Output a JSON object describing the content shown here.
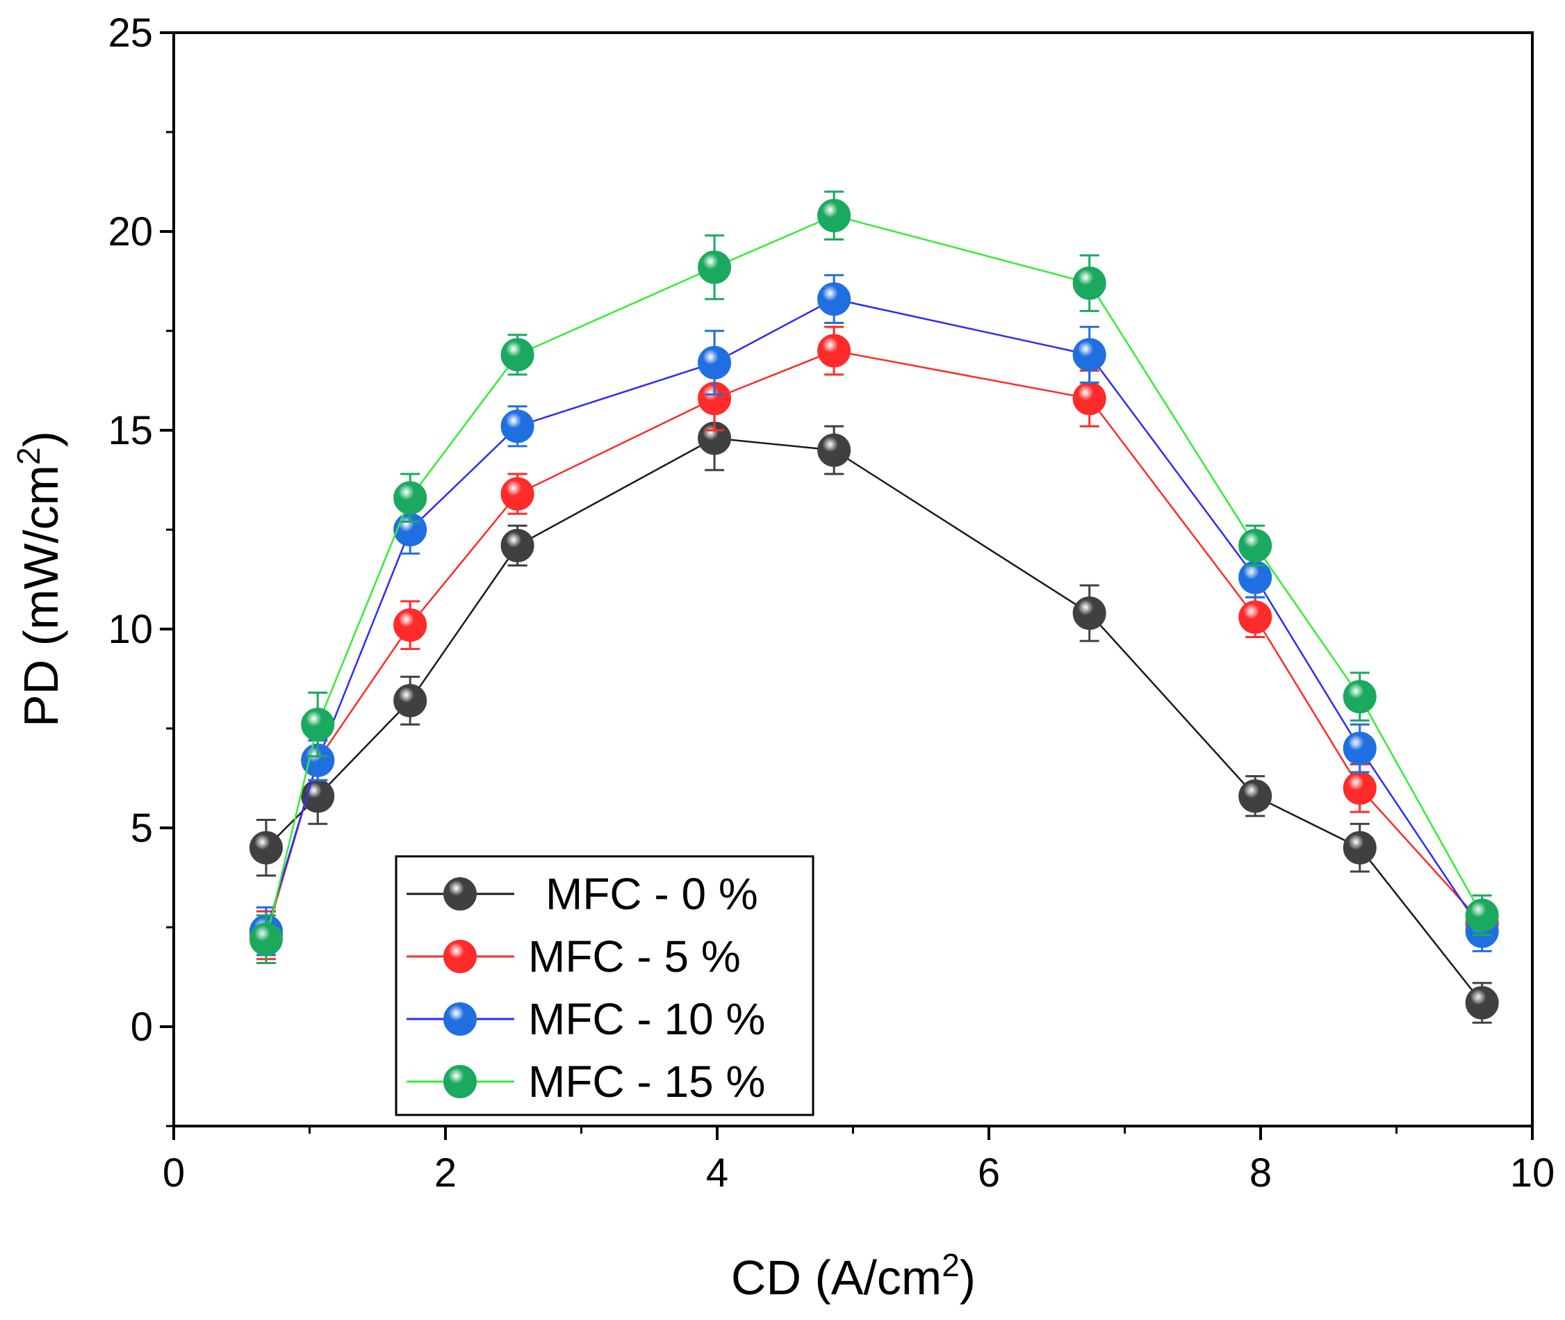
{
  "chart_data": {
    "type": "line",
    "title": "",
    "xlabel": {
      "text": "CD (A/cm",
      "sup": "2",
      "close": ")"
    },
    "ylabel": {
      "text": "PD (mW/cm",
      "sup": "2",
      "close": ")"
    },
    "xlim": [
      0,
      10
    ],
    "ylim": [
      -2.5,
      25
    ],
    "xticks": [
      0,
      2,
      4,
      6,
      8,
      10
    ],
    "yticks": [
      0,
      5,
      10,
      15,
      20,
      25
    ],
    "x_tick_labels": [
      "0",
      "2",
      "4",
      "6",
      "8",
      "10"
    ],
    "y_tick_labels": [
      "0",
      "5",
      "10",
      "15",
      "20",
      "25"
    ],
    "grid": false,
    "legend_position": "bottom-left",
    "x": [
      0.68,
      1.06,
      1.74,
      2.53,
      3.98,
      4.86,
      6.74,
      7.96,
      8.73,
      9.63
    ],
    "series": [
      {
        "name": "MFC - 0 %",
        "color": "#404040",
        "line_color": "#1a1a1a",
        "values": [
          4.5,
          5.8,
          8.2,
          12.1,
          14.8,
          14.5,
          10.4,
          5.8,
          4.5,
          0.6
        ],
        "errors": [
          0.7,
          0.7,
          0.6,
          0.5,
          0.8,
          0.6,
          0.7,
          0.5,
          0.6,
          0.5
        ]
      },
      {
        "name": "MFC - 5 %",
        "color": "#ff2a2a",
        "line_color": "#ff2a2a",
        "values": [
          2.3,
          6.7,
          10.1,
          13.4,
          15.8,
          17.0,
          15.8,
          10.3,
          6.0,
          2.6
        ],
        "errors": [
          0.6,
          0.5,
          0.6,
          0.5,
          0.8,
          0.6,
          0.7,
          0.5,
          0.6,
          0.5
        ]
      },
      {
        "name": "MFC - 10 %",
        "color": "#1f6fe0",
        "line_color": "#2a2aff",
        "values": [
          2.4,
          6.7,
          12.5,
          15.1,
          16.7,
          18.3,
          16.9,
          11.3,
          7.0,
          2.4
        ],
        "errors": [
          0.6,
          0.5,
          0.6,
          0.5,
          0.8,
          0.6,
          0.7,
          0.5,
          0.6,
          0.5
        ]
      },
      {
        "name": "MFC - 15 %",
        "color": "#1ba95f",
        "line_color": "#33ee33",
        "values": [
          2.2,
          7.6,
          13.3,
          16.9,
          19.1,
          20.4,
          18.7,
          12.1,
          8.3,
          2.8
        ],
        "errors": [
          0.6,
          0.8,
          0.6,
          0.5,
          0.8,
          0.6,
          0.7,
          0.5,
          0.6,
          0.5
        ]
      }
    ]
  }
}
